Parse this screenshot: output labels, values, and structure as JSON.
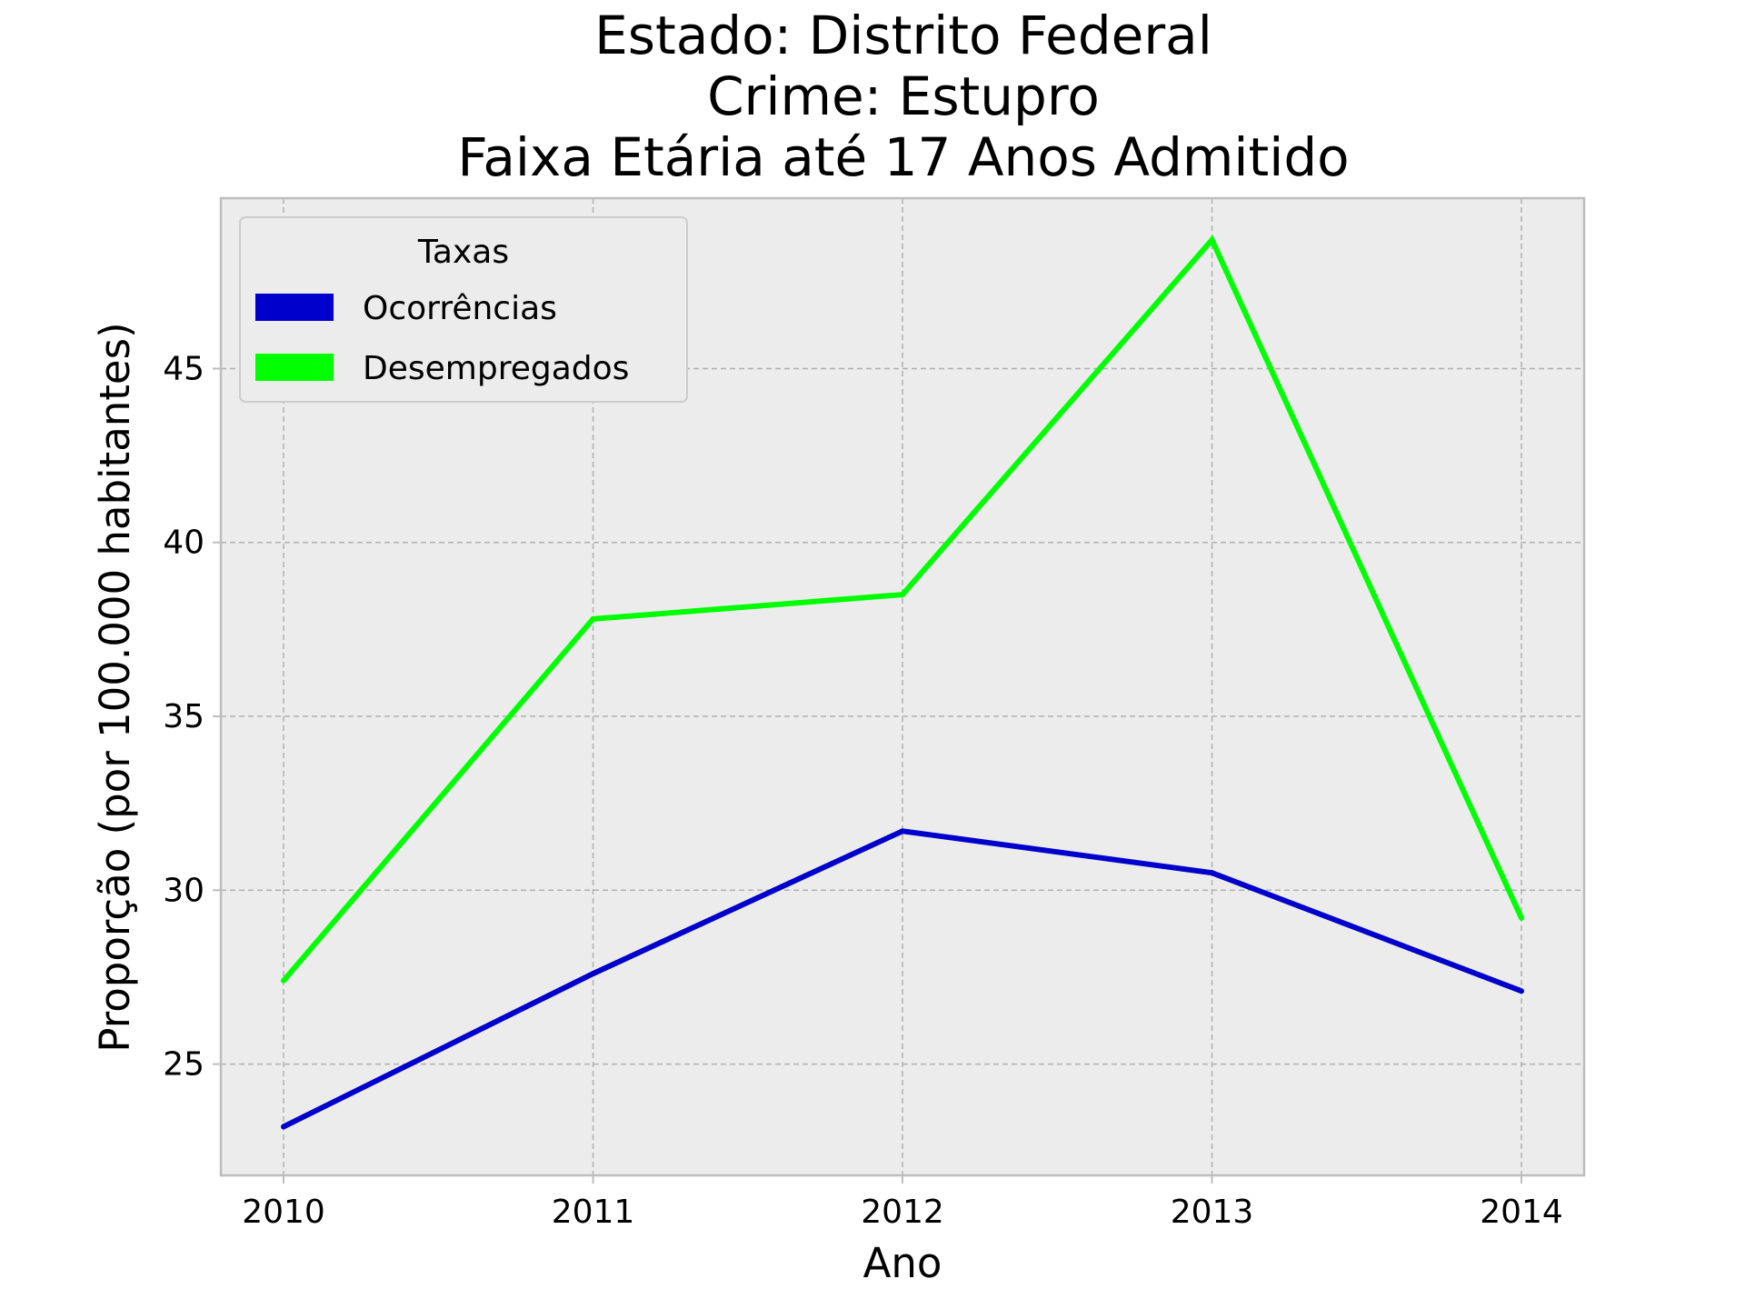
{
  "chart_data": {
    "type": "line",
    "title": [
      "Estado: Distrito Federal",
      "Crime: Estupro",
      "Faixa Etária até 17 Anos   Admitido"
    ],
    "xlabel": "Ano",
    "ylabel": "Proporção (por 100.000 habitantes)",
    "categories": [
      "2010",
      "2011",
      "2012",
      "2013",
      "2014"
    ],
    "yticks": [
      "25",
      "30",
      "35",
      "40",
      "45"
    ],
    "ylim": [
      21.8,
      49.9
    ],
    "grid": true,
    "legend": {
      "title": "Taxas",
      "placement": "top-left"
    },
    "series": [
      {
        "name": "Ocorrências",
        "color": "#0000cc",
        "values": [
          23.2,
          27.6,
          31.7,
          30.5,
          27.1
        ]
      },
      {
        "name": "Desempregados",
        "color": "#00ff00",
        "values": [
          27.4,
          37.8,
          38.5,
          48.7,
          29.2
        ]
      }
    ],
    "colors": {
      "plot_background": "#ececec",
      "spine": "#bdbdbd"
    }
  }
}
